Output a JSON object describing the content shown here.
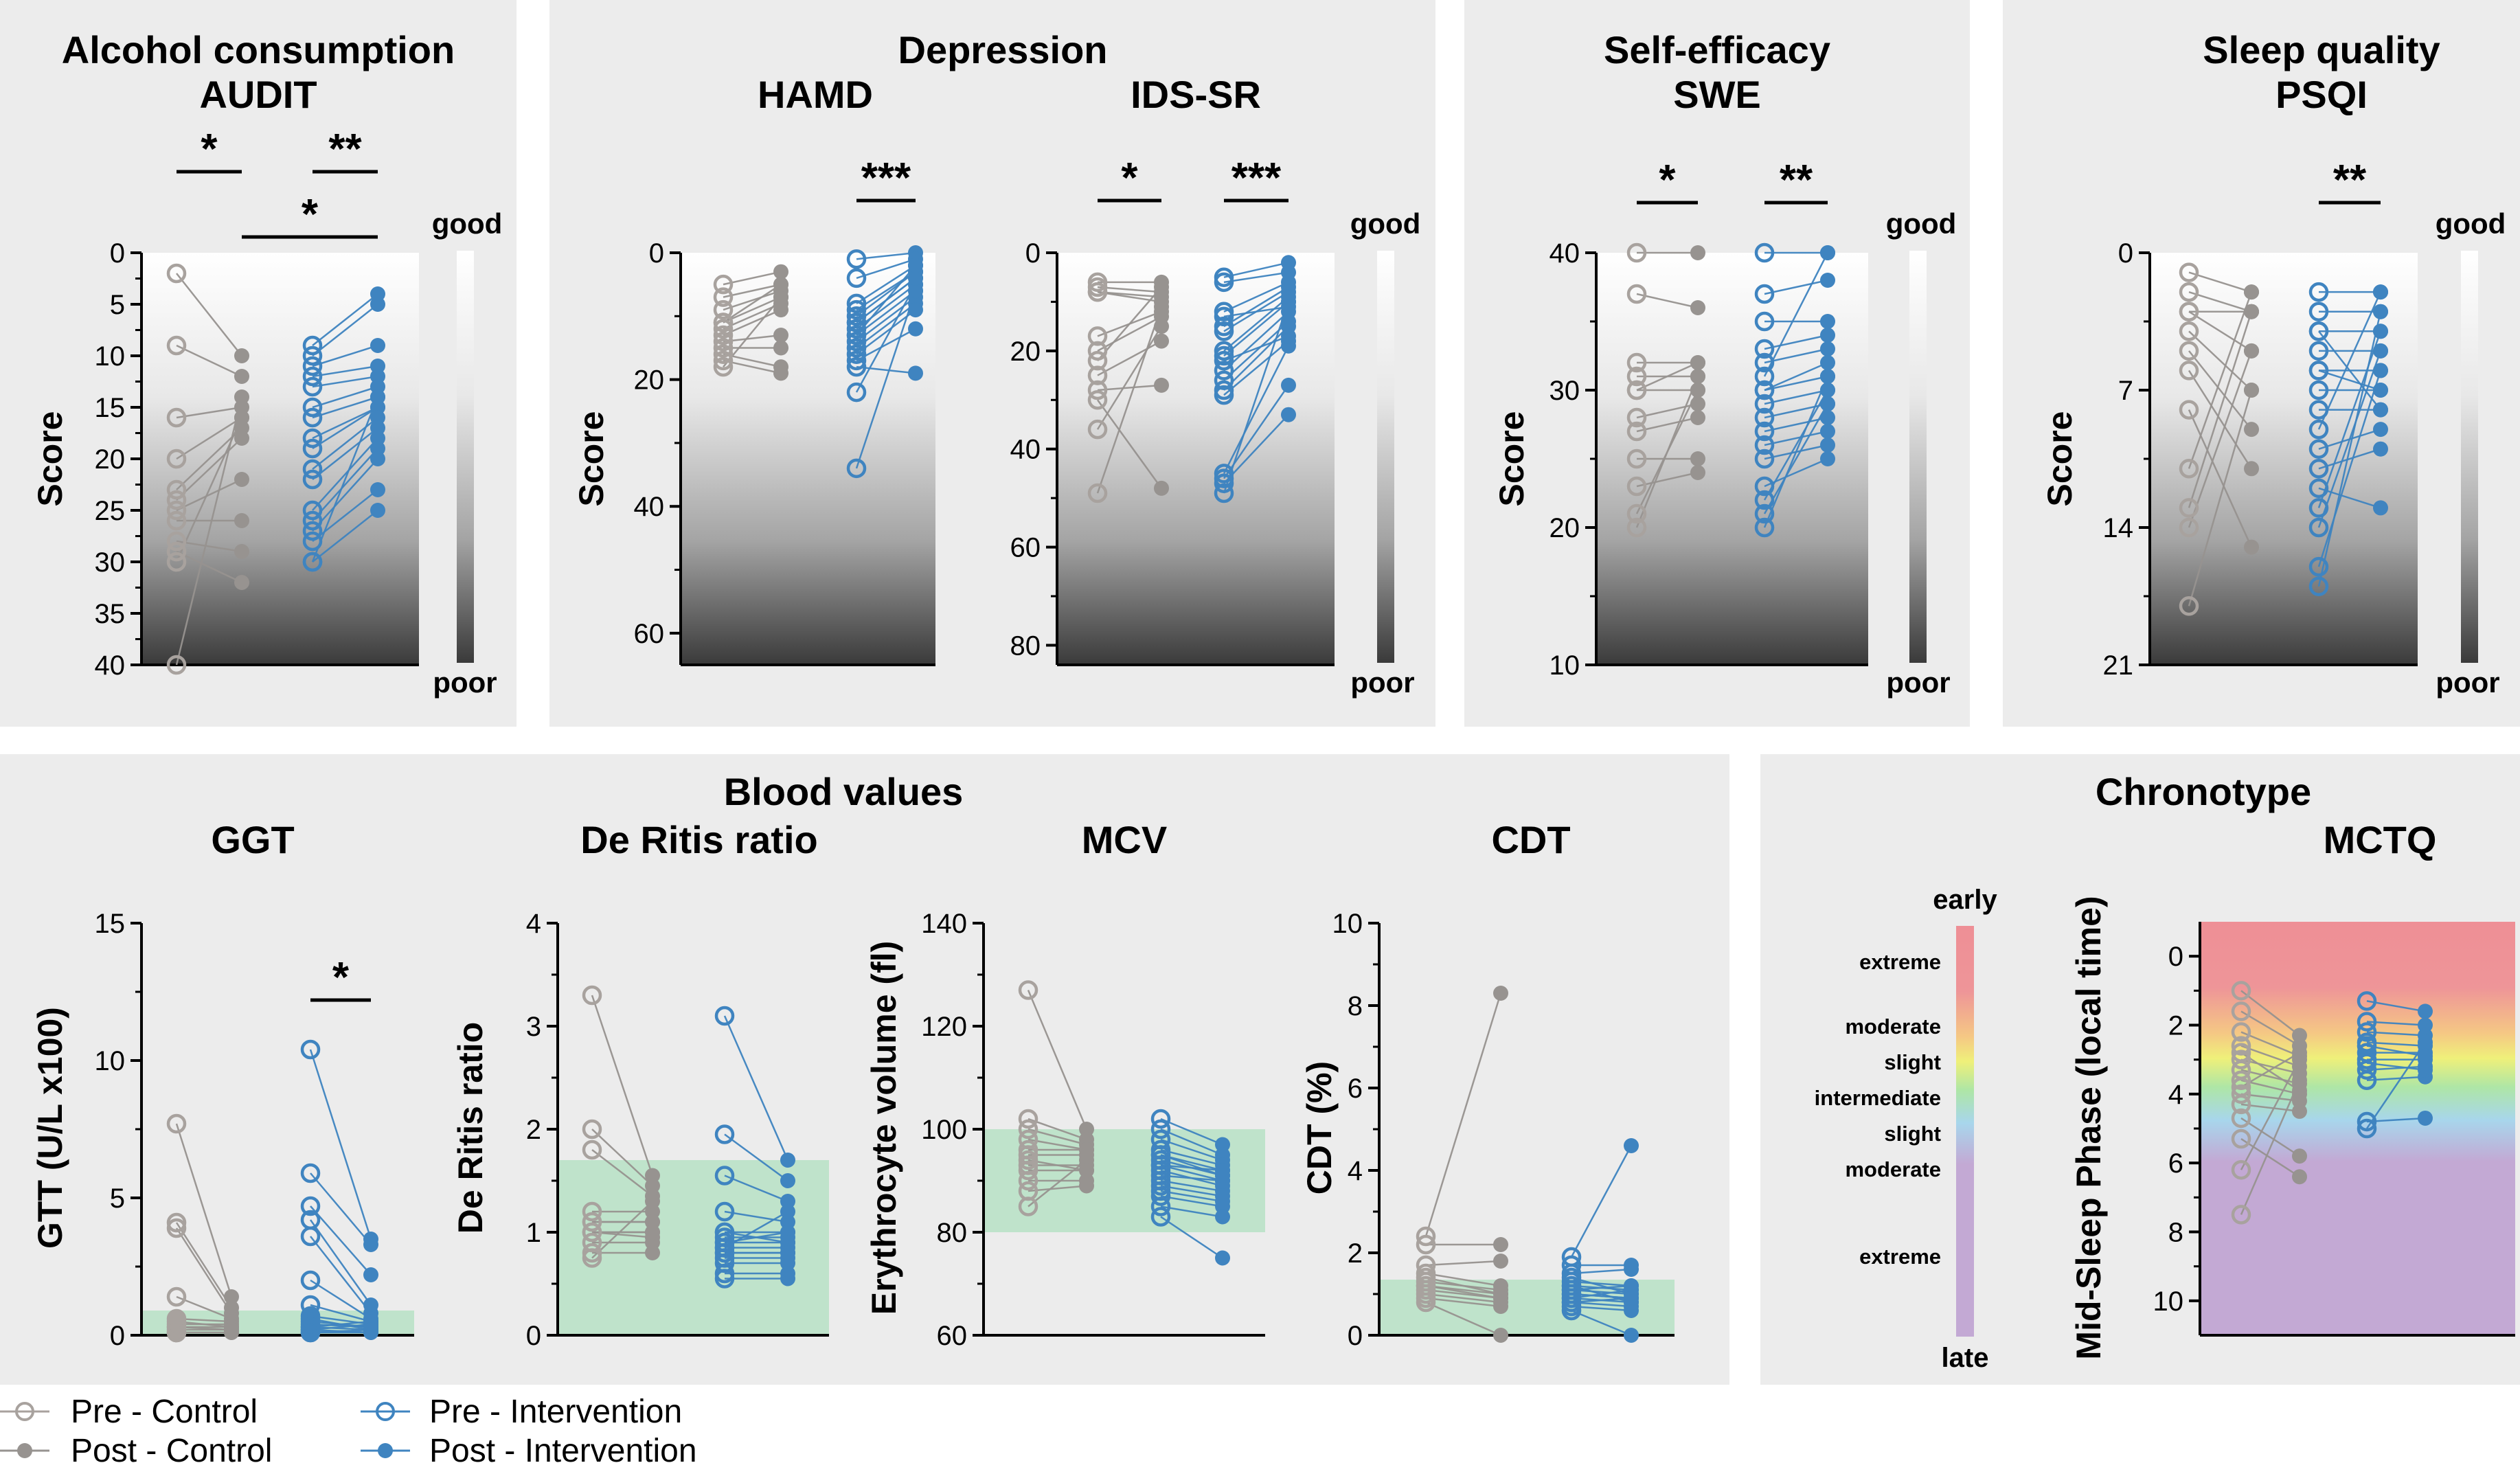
{
  "legend": {
    "pre_control": "Pre - Control",
    "post_control": "Post - Control",
    "pre_intervention": "Pre - Intervention",
    "post_intervention": "Post - Intervention"
  },
  "colors": {
    "control_pre": "#a8a29e",
    "control_post": "#979390",
    "intervention": "#3f84c0",
    "normal_range": "#bfe3cb",
    "panel_bg": "#ececec"
  },
  "panel_titles": {
    "alcohol": "Alcohol consumption",
    "depression": "Depression",
    "selfefficacy": "Self-efficacy",
    "sleep": "Sleep quality",
    "blood": "Blood values",
    "chronotype": "Chronotype"
  },
  "gradient_labels": {
    "good": "good",
    "poor": "poor"
  },
  "chronotype_scale": {
    "early": "early",
    "late": "late",
    "levels": [
      "extreme",
      "moderate",
      "slight",
      "intermediate",
      "slight",
      "moderate",
      "extreme"
    ]
  },
  "chart_data": [
    {
      "id": "audit",
      "type": "scatter",
      "title": "AUDIT",
      "ylabel": "Score",
      "ylim": [
        0,
        40
      ],
      "y_inverted": true,
      "yticks": [
        0,
        5,
        10,
        15,
        20,
        25,
        30,
        35,
        40
      ],
      "significance": [
        {
          "pair": "control pre vs post",
          "label": "*"
        },
        {
          "pair": "intervention pre vs post",
          "label": "**"
        },
        {
          "pair": "control post vs intervention post",
          "label": "*"
        }
      ],
      "control": {
        "pre": [
          2,
          9,
          16,
          20,
          23,
          24,
          25,
          26,
          28,
          29,
          30,
          40
        ],
        "post": [
          10,
          12,
          15,
          16,
          17,
          18,
          22,
          26,
          29,
          32,
          16,
          14
        ]
      },
      "intervention": {
        "pre": [
          9,
          10,
          11,
          12,
          13,
          15,
          16,
          18,
          19,
          21,
          22,
          25,
          26,
          27,
          28,
          30,
          30
        ],
        "post": [
          4,
          5,
          9,
          11,
          12,
          13,
          14,
          15,
          15,
          16,
          17,
          18,
          19,
          20,
          23,
          25,
          14
        ]
      }
    },
    {
      "id": "hamd",
      "type": "scatter",
      "title": "HAMD",
      "ylabel": "Score",
      "ylim": [
        0,
        65
      ],
      "y_inverted": true,
      "yticks": [
        0,
        20,
        40,
        60
      ],
      "significance": [
        {
          "pair": "intervention pre vs post",
          "label": "***"
        }
      ],
      "control": {
        "pre": [
          5,
          7,
          9,
          11,
          12,
          13,
          14,
          15,
          16,
          17,
          18,
          11
        ],
        "post": [
          3,
          5,
          6,
          7,
          8,
          9,
          13,
          15,
          18,
          19,
          7,
          5
        ]
      },
      "intervention": {
        "pre": [
          1,
          4,
          8,
          9,
          10,
          11,
          12,
          13,
          14,
          15,
          16,
          17,
          18,
          22,
          34,
          11,
          13
        ],
        "post": [
          0,
          1,
          2,
          3,
          3,
          4,
          5,
          6,
          7,
          8,
          9,
          12,
          19,
          5,
          6,
          4,
          2
        ]
      }
    },
    {
      "id": "idssr",
      "type": "scatter",
      "title": "IDS-SR",
      "ylabel": "",
      "ylim": [
        0,
        84
      ],
      "y_inverted": true,
      "yticks": [
        0,
        20,
        40,
        60,
        80
      ],
      "significance": [
        {
          "pair": "control pre vs post",
          "label": "*"
        },
        {
          "pair": "intervention pre vs post",
          "label": "***"
        }
      ],
      "control": {
        "pre": [
          6,
          7,
          8,
          17,
          20,
          25,
          28,
          30,
          36,
          49,
          22,
          8
        ],
        "post": [
          6,
          8,
          10,
          12,
          13,
          18,
          27,
          48,
          15,
          11,
          7,
          9
        ]
      },
      "intervention": {
        "pre": [
          5,
          6,
          12,
          15,
          16,
          20,
          21,
          24,
          26,
          28,
          29,
          45,
          46,
          47,
          49,
          13,
          22
        ],
        "post": [
          2,
          4,
          6,
          7,
          8,
          9,
          10,
          12,
          14,
          15,
          18,
          19,
          27,
          33,
          10,
          11,
          17
        ]
      }
    },
    {
      "id": "swe",
      "type": "scatter",
      "title": "SWE",
      "ylabel": "Score",
      "ylim": [
        10,
        40
      ],
      "y_inverted": false,
      "yticks": [
        10,
        20,
        30,
        40
      ],
      "significance": [
        {
          "pair": "control pre vs post",
          "label": "*"
        },
        {
          "pair": "intervention pre vs post",
          "label": "**"
        }
      ],
      "control": {
        "pre": [
          40,
          37,
          32,
          31,
          30,
          28,
          27,
          25,
          23,
          21,
          20,
          30
        ],
        "post": [
          40,
          36,
          32,
          31,
          30,
          29,
          28,
          25,
          24,
          30,
          31,
          32
        ]
      },
      "intervention": {
        "pre": [
          40,
          37,
          35,
          33,
          32,
          30,
          29,
          28,
          27,
          26,
          25,
          23,
          22,
          21,
          20,
          30,
          31
        ],
        "post": [
          40,
          38,
          35,
          34,
          33,
          31,
          30,
          29,
          28,
          27,
          26,
          25,
          30,
          29,
          31,
          32,
          40
        ]
      }
    },
    {
      "id": "psqi",
      "type": "scatter",
      "title": "PSQI",
      "ylabel": "Score",
      "ylim": [
        0,
        21
      ],
      "y_inverted": true,
      "yticks": [
        0,
        7,
        14,
        21
      ],
      "significance": [
        {
          "pair": "intervention pre vs post",
          "label": "**"
        }
      ],
      "control": {
        "pre": [
          1,
          2,
          3,
          4,
          5,
          6,
          8,
          11,
          13,
          14,
          18,
          3
        ],
        "post": [
          2,
          3,
          5,
          7,
          9,
          11,
          15,
          2,
          3,
          5,
          7,
          3
        ]
      },
      "intervention": {
        "pre": [
          2,
          3,
          4,
          5,
          6,
          7,
          8,
          10,
          11,
          12,
          13,
          14,
          16,
          17,
          6,
          9,
          4
        ],
        "post": [
          2,
          3,
          4,
          5,
          6,
          7,
          8,
          9,
          10,
          13,
          4,
          5,
          6,
          3,
          7,
          2,
          8
        ]
      }
    },
    {
      "id": "ggt",
      "type": "scatter",
      "title": "GGT",
      "ylabel": "GTT (U/L x100)",
      "ylim": [
        0,
        15
      ],
      "yticks": [
        0,
        5,
        10,
        15
      ],
      "normal_range": [
        0,
        0.9
      ],
      "significance": [
        {
          "pair": "intervention pre vs post",
          "label": "*"
        }
      ],
      "control": {
        "pre": [
          7.7,
          4.1,
          3.9,
          1.4,
          0.6,
          0.4,
          0.3,
          0.2,
          0.1,
          0.1,
          0.5,
          0.3
        ],
        "post": [
          1.4,
          1.0,
          0.8,
          0.6,
          0.5,
          0.4,
          0.3,
          0.2,
          0.1,
          0.1,
          0.3,
          0.2
        ]
      },
      "intervention": {
        "pre": [
          10.4,
          5.9,
          4.7,
          4.2,
          3.6,
          2.0,
          1.1,
          0.7,
          0.4,
          0.3,
          0.2,
          0.1,
          0.1,
          0.5,
          0.3,
          0.2,
          0.6
        ],
        "post": [
          3.5,
          3.3,
          2.2,
          1.1,
          0.8,
          0.6,
          0.5,
          0.4,
          0.3,
          0.2,
          0.1,
          0.1,
          0.2,
          0.3,
          0.5,
          0.4,
          0.2
        ]
      }
    },
    {
      "id": "deritis",
      "type": "scatter",
      "title": "De Ritis ratio",
      "ylabel": "De Ritis ratio",
      "ylim": [
        0,
        4
      ],
      "yticks": [
        0,
        1,
        2,
        3,
        4
      ],
      "normal_range": [
        0,
        1.7
      ],
      "significance": [],
      "control": {
        "pre": [
          3.3,
          2.0,
          1.8,
          1.2,
          1.1,
          1.0,
          1.0,
          0.9,
          0.8,
          0.75,
          1.1,
          1.0
        ],
        "post": [
          1.55,
          1.45,
          1.35,
          1.2,
          1.1,
          1.0,
          0.95,
          0.9,
          0.8,
          1.3,
          1.1,
          1.0
        ]
      },
      "intervention": {
        "pre": [
          3.1,
          1.95,
          1.55,
          1.2,
          1.0,
          0.95,
          0.9,
          0.85,
          0.8,
          0.75,
          0.7,
          0.6,
          0.55,
          0.9,
          1.0,
          0.8,
          0.85
        ],
        "post": [
          1.7,
          1.5,
          1.3,
          1.1,
          1.0,
          0.95,
          0.9,
          0.85,
          0.8,
          0.75,
          0.7,
          0.6,
          0.55,
          1.0,
          0.9,
          0.8,
          1.2
        ]
      }
    },
    {
      "id": "mcv",
      "type": "scatter",
      "title": "MCV",
      "ylabel": "Erythrocyte volume (fl)",
      "ylim": [
        60,
        140
      ],
      "yticks": [
        60,
        80,
        100,
        120,
        140
      ],
      "normal_range": [
        80,
        100
      ],
      "significance": [],
      "control": {
        "pre": [
          127,
          102,
          100,
          98,
          95,
          93,
          92,
          90,
          88,
          85,
          96,
          94
        ],
        "post": [
          100,
          98,
          97,
          96,
          95,
          93,
          92,
          90,
          89,
          94,
          96,
          92
        ]
      },
      "intervention": {
        "pre": [
          102,
          100,
          98,
          96,
          95,
          94,
          93,
          92,
          90,
          89,
          88,
          87,
          85,
          83,
          91,
          93,
          95
        ],
        "post": [
          97,
          95,
          94,
          93,
          92,
          91,
          90,
          89,
          88,
          87,
          86,
          85,
          83,
          75,
          90,
          92,
          91
        ]
      }
    },
    {
      "id": "cdt",
      "type": "scatter",
      "title": "CDT",
      "ylabel": "CDT (%)",
      "ylim": [
        0,
        10
      ],
      "yticks": [
        0,
        2,
        4,
        6,
        8,
        10
      ],
      "normal_range": [
        0,
        1.35
      ],
      "significance": [],
      "control": {
        "pre": [
          2.4,
          2.2,
          1.7,
          1.5,
          1.3,
          1.2,
          1.1,
          1.0,
          0.9,
          0.8,
          1.4,
          1.2
        ],
        "post": [
          8.3,
          2.2,
          1.8,
          1.2,
          1.1,
          1.0,
          0.9,
          0.8,
          0.7,
          0.0,
          1.0,
          0.9
        ]
      },
      "intervention": {
        "pre": [
          1.9,
          1.7,
          1.5,
          1.3,
          1.2,
          1.1,
          1.0,
          0.9,
          0.8,
          0.7,
          0.6,
          1.4,
          1.0,
          0.9,
          1.2,
          1.1,
          0.8
        ],
        "post": [
          4.6,
          1.7,
          1.6,
          1.2,
          1.1,
          1.0,
          0.9,
          0.8,
          0.7,
          0.6,
          0.0,
          1.0,
          0.9,
          1.1,
          0.8,
          1.2,
          0.9
        ]
      }
    },
    {
      "id": "mctq",
      "type": "scatter",
      "title": "MCTQ",
      "ylabel": "Mid-Sleep Phase (local time)",
      "ylim": [
        -1,
        11
      ],
      "y_inverted": true,
      "yticks": [
        0,
        2,
        4,
        6,
        8,
        10
      ],
      "significance": [],
      "control": {
        "pre": [
          1.0,
          1.6,
          2.2,
          2.6,
          3.0,
          3.3,
          3.6,
          4.0,
          4.3,
          4.7,
          5.3,
          6.2,
          7.5,
          2.8,
          3.8
        ],
        "post": [
          2.3,
          2.6,
          2.9,
          3.2,
          3.4,
          3.7,
          4.0,
          4.2,
          4.5,
          5.8,
          6.4,
          3.0,
          3.6,
          3.9,
          2.8
        ]
      },
      "intervention": {
        "pre": [
          1.3,
          1.9,
          2.2,
          2.5,
          2.8,
          3.0,
          3.3,
          3.6,
          4.8,
          5.0,
          2.6,
          3.1
        ],
        "post": [
          1.6,
          2.0,
          2.3,
          2.6,
          2.8,
          3.0,
          3.2,
          3.5,
          4.7,
          2.5,
          2.9,
          3.3
        ]
      }
    }
  ]
}
